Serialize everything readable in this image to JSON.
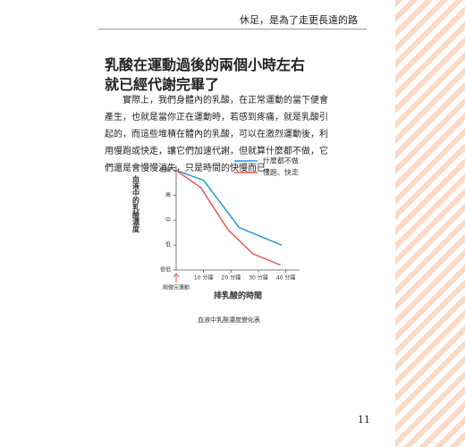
{
  "header": {
    "title": "休足，是為了走更長遠的路"
  },
  "heading": {
    "lines": [
      "乳酸在運動過後的兩個小時左右",
      "就已經代謝完畢了"
    ]
  },
  "paragraph": "實際上，我們身體內的乳酸，在正常運動的當下便會產生，也就是當你正在運動時，若感到疼痛，就是乳酸引起的，而這些堆積在體內的乳酸，可以在激烈運動後，利用慢跑或快走，讓它們加速代謝，但就算什麼都不做，它們還是會慢慢消失，只是時間的快慢而已。",
  "chart_data": {
    "type": "line",
    "y_label": "血液中的乳酸濃度",
    "x_label": "排乳酸的時間",
    "caption": "血液中乳酸濃度變化表",
    "annotation": "剛做完運動",
    "xlim": [
      0,
      45
    ],
    "ylim": [
      0,
      4.2
    ],
    "xticks": [
      {
        "value": 10,
        "label": "10 分鐘"
      },
      {
        "value": 20,
        "label": "20 分鐘"
      },
      {
        "value": 30,
        "label": "30 分鐘"
      },
      {
        "value": 40,
        "label": "40 分鐘"
      }
    ],
    "yticks": [
      {
        "value": 0,
        "label": "很低"
      },
      {
        "value": 1,
        "label": "低"
      },
      {
        "value": 2,
        "label": "中"
      },
      {
        "value": 3,
        "label": "高"
      },
      {
        "value": 4,
        "label": "超高"
      }
    ],
    "series": [
      {
        "name": "什麼都不做",
        "color": "#1e9ad6",
        "x": [
          0,
          10,
          23,
          38.5
        ],
        "values": [
          4,
          3.6,
          1.7,
          1.0
        ]
      },
      {
        "name": "慢跑、快走",
        "color": "#e8575a",
        "x": [
          0,
          9,
          19,
          28,
          38
        ],
        "values": [
          4,
          3.3,
          1.6,
          0.65,
          0.2
        ]
      }
    ]
  },
  "page_number": "11"
}
